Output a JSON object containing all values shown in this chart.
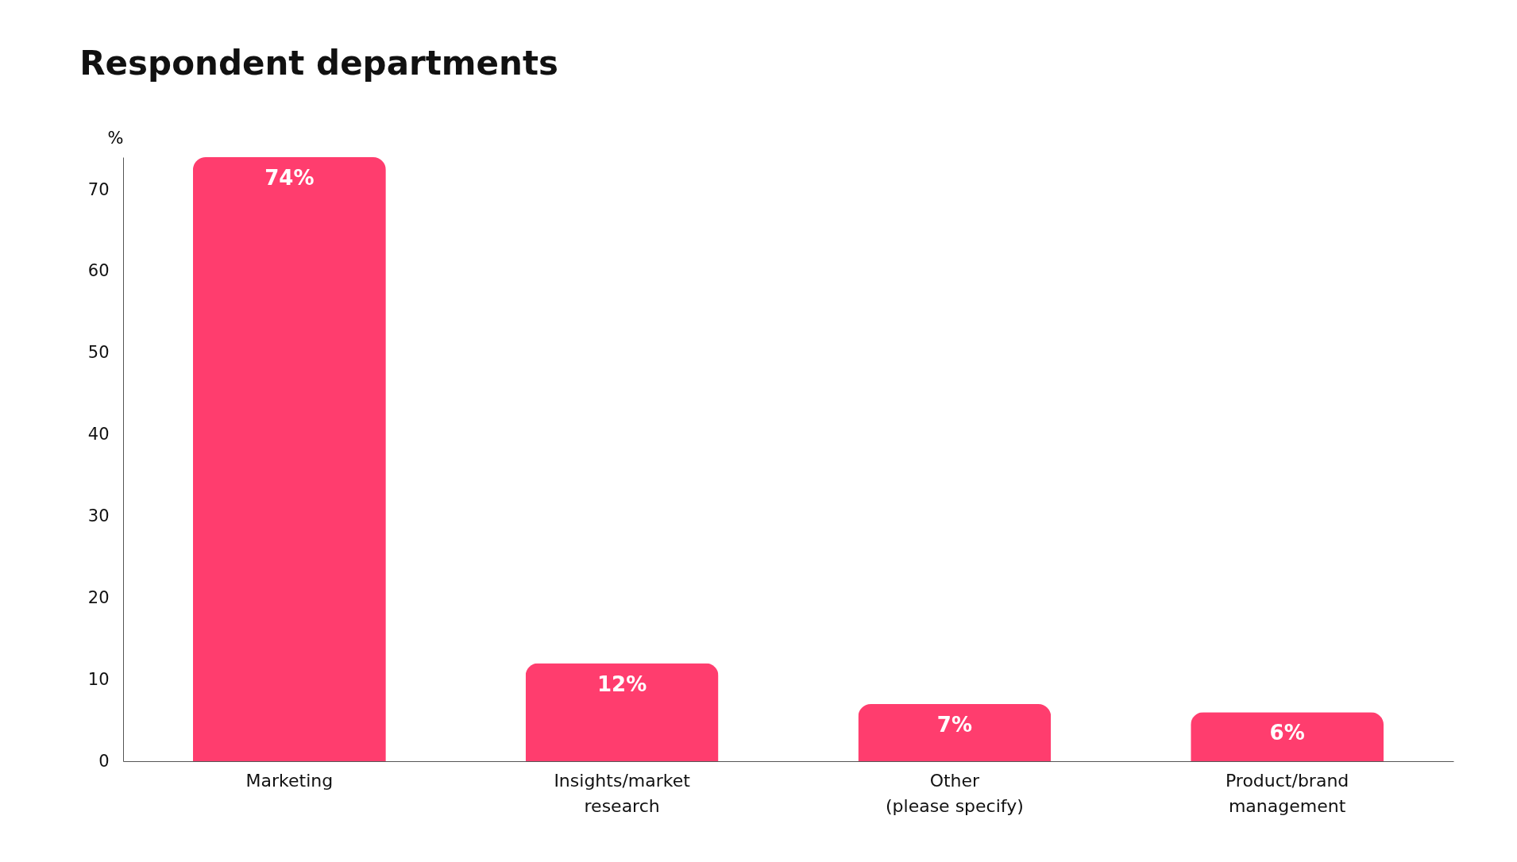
{
  "chart_data": {
    "type": "bar",
    "title": "Respondent departments",
    "ylabel": "%",
    "categories": [
      "Marketing",
      "Insights/market research",
      "Other (please specify)",
      "Product/brand management"
    ],
    "values": [
      74,
      12,
      7,
      6
    ],
    "value_labels": [
      "74%",
      "12%",
      "7%",
      "6%"
    ],
    "color": "#ff3d6e",
    "ylim": [
      0,
      74
    ],
    "yticks": [
      0,
      10,
      20,
      30,
      40,
      50,
      60,
      70
    ],
    "grid": false
  }
}
